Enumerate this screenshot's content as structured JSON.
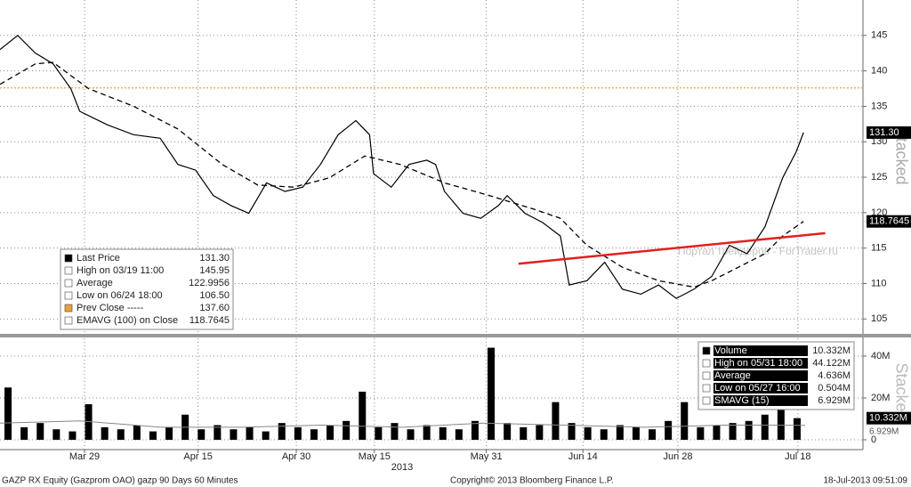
{
  "chart_data": {
    "type": "line",
    "xlim": [
      0,
      100
    ],
    "xticks": [
      {
        "value": 10.5,
        "label": "Mar 29"
      },
      {
        "value": 24.6,
        "label": "Apr 15"
      },
      {
        "value": 36.8,
        "label": "Apr 30"
      },
      {
        "value": 46.5,
        "label": "May 15"
      },
      {
        "value": 60.4,
        "label": "May 31"
      },
      {
        "value": 72.4,
        "label": "Jun 14"
      },
      {
        "value": 84.2,
        "label": "Jun 28"
      },
      {
        "value": 99.1,
        "label": "Jul 18"
      }
    ],
    "x_year": "2013",
    "ylim": [
      102.9,
      150
    ],
    "yticks": [
      105,
      110,
      115,
      120,
      125,
      130,
      135,
      140,
      145
    ],
    "grid": true,
    "series": [
      {
        "name": "Last Price",
        "color": "#000000",
        "x": [
          0,
          2.2,
          4.4,
          6.6,
          8.8,
          9.9,
          13.3,
          16.6,
          19.9,
          22.1,
          24.3,
          26.5,
          28.7,
          30.9,
          33.1,
          35.4,
          37.6,
          39.8,
          42,
          44.2,
          45.9,
          46.4,
          48.6,
          50.8,
          53,
          54.1,
          55.2,
          57.5,
          59.7,
          61.9,
          63,
          65.2,
          67.4,
          69.6,
          70.7,
          72.9,
          75.1,
          77.3,
          79.6,
          81.8,
          84,
          86.2,
          88.4,
          90.6,
          92.8,
          95,
          97.2,
          98.9,
          99.8
        ],
        "values": [
          143,
          145,
          142.5,
          141,
          137.5,
          134.3,
          132.4,
          131,
          130.5,
          126.8,
          126,
          122.4,
          121,
          119.9,
          124.2,
          123,
          123.6,
          126.8,
          131,
          133,
          131,
          125.5,
          123.6,
          126.8,
          127.4,
          126.8,
          123,
          119.9,
          119.2,
          121,
          122.4,
          119.9,
          118.6,
          116.7,
          109.8,
          110.4,
          113,
          109.2,
          108.5,
          109.8,
          107.9,
          109.2,
          111,
          115.4,
          114.2,
          118,
          124.9,
          128.6,
          131.3
        ]
      },
      {
        "name": "EMAVG (100) on Close",
        "color": "#000000",
        "dashed": true,
        "x": [
          0,
          4.4,
          6.6,
          11,
          16.6,
          22.1,
          27.6,
          32,
          36.5,
          40.9,
          45.3,
          49.7,
          55.2,
          60.8,
          66.3,
          69.6,
          72.9,
          77.3,
          81.8,
          86.2,
          88.4,
          91.7,
          95,
          97.2,
          99.8
        ],
        "values": [
          138.1,
          141,
          141.2,
          137.5,
          135,
          131.8,
          126.8,
          123.9,
          123.6,
          124.9,
          128,
          126.8,
          124.2,
          122.4,
          120.5,
          119.2,
          115.4,
          112.3,
          110.4,
          109.5,
          110.4,
          112.3,
          114.2,
          116.7,
          118.7645
        ]
      }
    ],
    "prev_close": {
      "value": 137.6,
      "color": "#f0a030"
    },
    "trendline": {
      "x": [
        64.4,
        102.5
      ],
      "values": [
        112.8,
        117.1
      ],
      "color": "#e02020"
    },
    "last_value_label": "131.30",
    "ema_value_label": "118.7645",
    "legend": [
      [
        "Last Price",
        "131.30"
      ],
      [
        "High on 03/19 11:00",
        "145.95"
      ],
      [
        "Average",
        "122.9956"
      ],
      [
        "Low on 06/24 18:00",
        "106.50"
      ],
      [
        "Prev Close -----",
        "137.60"
      ],
      [
        "EMAVG (100) on Close",
        "118.7645"
      ]
    ],
    "volume": {
      "color": "#000000",
      "x": [
        1,
        3,
        5,
        7,
        9,
        11,
        13,
        15,
        17,
        19,
        21,
        23,
        25,
        27,
        29,
        31,
        33,
        35,
        37,
        39,
        41,
        43,
        45,
        47,
        49,
        51,
        53,
        55,
        57,
        59,
        61,
        63,
        65,
        67,
        69,
        71,
        73,
        75,
        77,
        79,
        81,
        83,
        85,
        87,
        89,
        91,
        93,
        95,
        97,
        99
      ],
      "values": [
        25,
        6,
        8,
        5,
        4,
        17,
        6,
        5,
        7,
        4,
        6,
        12,
        5,
        7,
        5,
        6,
        4,
        8,
        6,
        5,
        7,
        9,
        23,
        6,
        8,
        5,
        7,
        6,
        5,
        9,
        44,
        8,
        6,
        7,
        18,
        8,
        6,
        5,
        7,
        6,
        5,
        9,
        18,
        6,
        7,
        8,
        9,
        12,
        15,
        10.332
      ],
      "ylim": [
        -4.7,
        48.5
      ],
      "yticks": [
        0,
        {
          "value": 20,
          "label": "20M"
        },
        {
          "value": 40,
          "label": "40M"
        }
      ],
      "smavg": {
        "x": [
          0,
          10,
          20,
          30,
          40,
          50,
          60,
          70,
          80,
          90,
          100
        ],
        "values": [
          8,
          9,
          6,
          6,
          7,
          6,
          8,
          7,
          6,
          7,
          6.929
        ]
      },
      "last_label": "10.332M",
      "smavg_label": "6.929M",
      "legend": [
        [
          "Volume",
          "10.332M"
        ],
        [
          "High on 05/31 18:00",
          "44.122M"
        ],
        [
          "Average",
          "4.636M"
        ],
        [
          "Low on 05/27 16:00",
          "0.504M"
        ],
        [
          "SMAVG (15)",
          "6.929M"
        ]
      ]
    },
    "stacked_label": "Stacked",
    "watermark": "Портал трейдеров - ForTrader.ru",
    "footer": {
      "left": "GAZP RX Equity (Gazprom OAO) gazp 90 Days 60 Minutes",
      "center": "Copyright© 2013 Bloomberg Finance L.P.",
      "right": "18-Jul-2013 09:51:09"
    }
  }
}
